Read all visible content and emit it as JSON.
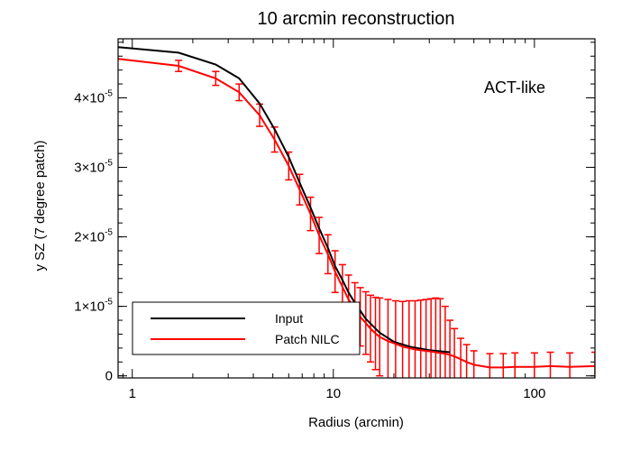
{
  "chart_data": {
    "type": "line",
    "title": "10 arcmin reconstruction",
    "xlabel": "Radius (arcmin)",
    "ylabel": "y SZ (7 degree patch)",
    "xscale": "log",
    "xlim": [
      0.85,
      200
    ],
    "ylim": [
      -3e-07,
      4.85e-05
    ],
    "x_ticks": [
      {
        "value": 1,
        "label": "1"
      },
      {
        "value": 10,
        "label": "10"
      },
      {
        "value": 100,
        "label": "100"
      }
    ],
    "y_ticks": [
      {
        "value": 0,
        "label": "0"
      },
      {
        "value": 1e-05,
        "label": "1×10",
        "exp": "-5"
      },
      {
        "value": 2e-05,
        "label": "2×10",
        "exp": "-5"
      },
      {
        "value": 3e-05,
        "label": "3×10",
        "exp": "-5"
      },
      {
        "value": 4e-05,
        "label": "4×10",
        "exp": "-5"
      }
    ],
    "annotation": "ACT-like",
    "legend_position": "bottom-left",
    "series": [
      {
        "name": "Input",
        "color": "#000000",
        "x": [
          0.85,
          1.7,
          2.6,
          3.4,
          4.3,
          5.1,
          6.0,
          6.8,
          7.7,
          8.5,
          9.4,
          10.2,
          11.1,
          11.9,
          12.8,
          14.5,
          17.0,
          20.0,
          24.0,
          30.0,
          38.0
        ],
        "y": [
          4.73e-05,
          4.65e-05,
          4.48e-05,
          4.28e-05,
          3.92e-05,
          3.55e-05,
          3.15e-05,
          2.78e-05,
          2.42e-05,
          2.12e-05,
          1.84e-05,
          1.58e-05,
          1.38e-05,
          1.2e-05,
          1.05e-05,
          8.2e-06,
          6.2e-06,
          4.9e-06,
          4.2e-06,
          3.7e-06,
          3.4e-06
        ]
      },
      {
        "name": "Patch NILC",
        "color": "#ff0000",
        "x": [
          0.85,
          1.7,
          2.6,
          3.4,
          4.3,
          5.1,
          6.0,
          6.8,
          7.7,
          8.5,
          9.4,
          10.2,
          11.1,
          11.9,
          12.8,
          13.6,
          14.5,
          15.3,
          16.2,
          17.0,
          18.7,
          20.4,
          22.1,
          23.8,
          25.5,
          27.2,
          28.9,
          30.6,
          32.3,
          34.0,
          36.0,
          38.0,
          40.0,
          43.0,
          46.0,
          50.0,
          60.0,
          70.0,
          80.0,
          100.0,
          120.0,
          150.0,
          200.0
        ],
        "y": [
          4.56e-05,
          4.46e-05,
          4.28e-05,
          4.08e-05,
          3.75e-05,
          3.4e-05,
          3.02e-05,
          2.68e-05,
          2.33e-05,
          2.02e-05,
          1.75e-05,
          1.5e-05,
          1.28e-05,
          1.1e-05,
          9.6e-06,
          8.5e-06,
          7.6e-06,
          6.8e-06,
          6.1e-06,
          5.6e-06,
          5e-06,
          4.6e-06,
          4.2e-06,
          4e-06,
          3.8e-06,
          3.7e-06,
          3.6e-06,
          3.5e-06,
          3.4e-06,
          3.3e-06,
          3.2e-06,
          3e-06,
          2.8e-06,
          2.4e-06,
          2e-06,
          1.6e-06,
          1.2e-06,
          1.2e-06,
          1.3e-06,
          1.3e-06,
          1.4e-06,
          1.3e-06,
          1.4e-06
        ],
        "err": [
          0,
          8e-07,
          1e-06,
          1.2e-06,
          1.6e-06,
          1.8e-06,
          2e-06,
          2.2e-06,
          2.4e-06,
          2.6e-06,
          2.8e-06,
          3e-06,
          3.2e-06,
          3.5e-06,
          3.8e-06,
          4.2e-06,
          4.5e-06,
          4.8e-06,
          5.2e-06,
          5.6e-06,
          6e-06,
          6.2e-06,
          6.5e-06,
          6.8e-06,
          7e-06,
          7.2e-06,
          7.4e-06,
          7.6e-06,
          7.8e-06,
          7.8e-06,
          6.8e-06,
          5e-06,
          4e-06,
          3e-06,
          2.5e-06,
          2e-06,
          2e-06,
          2e-06,
          2e-06,
          2e-06,
          2e-06,
          2e-06,
          2e-06
        ]
      }
    ]
  }
}
